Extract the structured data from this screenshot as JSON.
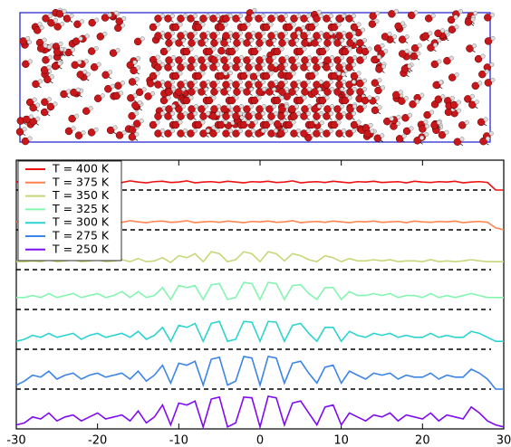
{
  "chart_data": {
    "type": "line",
    "x": [
      -30,
      -29,
      -28,
      -27,
      -26,
      -25,
      -24,
      -23,
      -22,
      -21,
      -20,
      -19,
      -18,
      -17,
      -16,
      -15,
      -14,
      -13,
      -12,
      -11,
      -10,
      -9,
      -8,
      -7,
      -6,
      -5,
      -4,
      -3,
      -2,
      -1,
      0,
      1,
      2,
      3,
      4,
      5,
      6,
      7,
      8,
      9,
      10,
      11,
      12,
      13,
      14,
      15,
      16,
      17,
      18,
      19,
      20,
      21,
      22,
      23,
      24,
      25,
      26,
      27,
      28,
      29,
      30
    ],
    "xlim": [
      -30,
      30
    ],
    "xticks": [
      -30,
      -20,
      -10,
      0,
      10,
      20,
      30
    ],
    "ylim": [
      0,
      6.75
    ],
    "baselines": [
      1,
      2,
      3,
      4,
      5,
      6
    ],
    "legend": "upper left",
    "series": [
      {
        "name": "T = 400 K",
        "color": "#ee1111",
        "values": [
          6.2,
          6.22,
          6.18,
          6.21,
          6.2,
          6.17,
          6.23,
          6.19,
          6.21,
          6.2,
          6.18,
          6.22,
          6.2,
          6.19,
          6.23,
          6.2,
          6.18,
          6.21,
          6.22,
          6.19,
          6.2,
          6.23,
          6.18,
          6.2,
          6.21,
          6.19,
          6.22,
          6.2,
          6.18,
          6.21,
          6.2,
          6.22,
          6.19,
          6.2,
          6.23,
          6.18,
          6.2,
          6.21,
          6.19,
          6.22,
          6.2,
          6.18,
          6.21,
          6.2,
          6.22,
          6.19,
          6.2,
          6.21,
          6.18,
          6.22,
          6.2,
          6.19,
          6.21,
          6.2,
          6.22,
          6.18,
          6.2,
          6.21,
          6.19,
          6.0,
          6.0
        ]
      },
      {
        "name": "T = 375 K",
        "color": "#ff8450",
        "values": [
          5.2,
          5.22,
          5.18,
          5.21,
          5.2,
          5.17,
          5.23,
          5.19,
          5.21,
          5.2,
          5.18,
          5.22,
          5.2,
          5.19,
          5.23,
          5.2,
          5.18,
          5.21,
          5.22,
          5.19,
          5.2,
          5.23,
          5.18,
          5.2,
          5.21,
          5.19,
          5.22,
          5.2,
          5.18,
          5.21,
          5.2,
          5.22,
          5.19,
          5.2,
          5.23,
          5.18,
          5.2,
          5.21,
          5.19,
          5.22,
          5.2,
          5.18,
          5.21,
          5.2,
          5.22,
          5.19,
          5.2,
          5.21,
          5.18,
          5.22,
          5.2,
          5.19,
          5.21,
          5.2,
          5.22,
          5.18,
          5.2,
          5.21,
          5.19,
          5.05,
          5.0
        ]
      },
      {
        "name": "T = 350 K",
        "color": "#c5d87a",
        "values": [
          4.2,
          4.2,
          4.22,
          4.2,
          4.25,
          4.2,
          4.22,
          4.25,
          4.2,
          4.22,
          4.25,
          4.2,
          4.22,
          4.25,
          4.2,
          4.28,
          4.2,
          4.22,
          4.3,
          4.18,
          4.35,
          4.3,
          4.4,
          4.2,
          4.45,
          4.4,
          4.2,
          4.25,
          4.45,
          4.4,
          4.2,
          4.45,
          4.4,
          4.22,
          4.4,
          4.35,
          4.25,
          4.2,
          4.35,
          4.3,
          4.2,
          4.28,
          4.22,
          4.22,
          4.25,
          4.22,
          4.25,
          4.2,
          4.22,
          4.22,
          4.2,
          4.25,
          4.2,
          4.22,
          4.2,
          4.22,
          4.25,
          4.22,
          4.2,
          4.2,
          4.2
        ]
      },
      {
        "name": "T = 325 K",
        "color": "#84f5b0",
        "values": [
          3.3,
          3.3,
          3.35,
          3.3,
          3.4,
          3.3,
          3.35,
          3.4,
          3.3,
          3.35,
          3.4,
          3.3,
          3.35,
          3.45,
          3.3,
          3.45,
          3.3,
          3.35,
          3.55,
          3.25,
          3.6,
          3.55,
          3.6,
          3.25,
          3.62,
          3.65,
          3.25,
          3.3,
          3.68,
          3.65,
          3.25,
          3.68,
          3.65,
          3.25,
          3.6,
          3.62,
          3.4,
          3.25,
          3.55,
          3.55,
          3.25,
          3.45,
          3.35,
          3.35,
          3.4,
          3.35,
          3.4,
          3.3,
          3.35,
          3.35,
          3.3,
          3.4,
          3.3,
          3.35,
          3.3,
          3.35,
          3.4,
          3.35,
          3.3,
          3.3,
          3.3
        ]
      },
      {
        "name": "T = 300 K",
        "color": "#2ed3d0",
        "values": [
          2.2,
          2.25,
          2.35,
          2.3,
          2.4,
          2.3,
          2.35,
          2.4,
          2.25,
          2.35,
          2.4,
          2.3,
          2.35,
          2.4,
          2.3,
          2.45,
          2.25,
          2.35,
          2.55,
          2.2,
          2.6,
          2.55,
          2.65,
          2.2,
          2.65,
          2.7,
          2.2,
          2.25,
          2.7,
          2.68,
          2.2,
          2.7,
          2.68,
          2.2,
          2.6,
          2.65,
          2.4,
          2.2,
          2.55,
          2.55,
          2.2,
          2.45,
          2.35,
          2.3,
          2.4,
          2.35,
          2.4,
          2.3,
          2.35,
          2.3,
          2.3,
          2.4,
          2.3,
          2.35,
          2.3,
          2.3,
          2.45,
          2.4,
          2.3,
          2.2,
          2.2
        ]
      },
      {
        "name": "T = 275 K",
        "color": "#3c84e8",
        "values": [
          1.1,
          1.2,
          1.35,
          1.3,
          1.45,
          1.25,
          1.35,
          1.4,
          1.25,
          1.35,
          1.4,
          1.3,
          1.35,
          1.4,
          1.25,
          1.45,
          1.2,
          1.35,
          1.6,
          1.15,
          1.65,
          1.6,
          1.7,
          1.1,
          1.75,
          1.8,
          1.1,
          1.2,
          1.82,
          1.78,
          1.1,
          1.82,
          1.78,
          1.15,
          1.65,
          1.7,
          1.4,
          1.15,
          1.55,
          1.6,
          1.15,
          1.45,
          1.35,
          1.25,
          1.4,
          1.35,
          1.4,
          1.25,
          1.35,
          1.3,
          1.3,
          1.4,
          1.25,
          1.35,
          1.3,
          1.3,
          1.5,
          1.4,
          1.25,
          1.0,
          1.0
        ]
      },
      {
        "name": "T = 250 K",
        "color": "#7f0cf0",
        "values": [
          0.1,
          0.15,
          0.3,
          0.25,
          0.4,
          0.2,
          0.3,
          0.35,
          0.2,
          0.3,
          0.4,
          0.25,
          0.3,
          0.35,
          0.2,
          0.45,
          0.15,
          0.3,
          0.6,
          0.1,
          0.65,
          0.6,
          0.7,
          0.05,
          0.75,
          0.8,
          0.05,
          0.15,
          0.8,
          0.78,
          0.05,
          0.82,
          0.78,
          0.1,
          0.65,
          0.7,
          0.4,
          0.1,
          0.55,
          0.6,
          0.1,
          0.4,
          0.3,
          0.2,
          0.35,
          0.3,
          0.4,
          0.2,
          0.35,
          0.3,
          0.25,
          0.4,
          0.2,
          0.35,
          0.3,
          0.25,
          0.55,
          0.4,
          0.2,
          0.1,
          0.05
        ]
      }
    ]
  }
}
